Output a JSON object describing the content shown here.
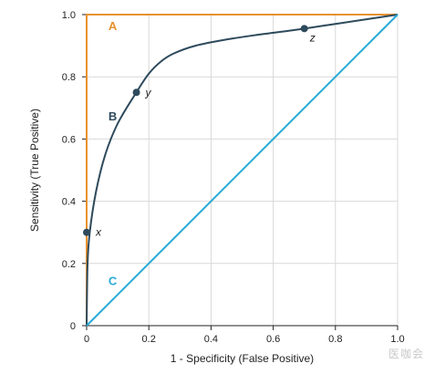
{
  "chart_data": {
    "type": "line",
    "xlabel": "1 - Specificity (False Positive)",
    "ylabel": "Sensitivity (True Positive)",
    "xlim": [
      0,
      1
    ],
    "ylim": [
      0,
      1
    ],
    "x_ticks": [
      0,
      0.2,
      0.4,
      0.6,
      0.8,
      1.0
    ],
    "x_tick_labels": [
      "0",
      "0.2",
      "0.4",
      "0.6",
      "0.8",
      "1.0"
    ],
    "y_ticks": [
      0,
      0.2,
      0.4,
      0.6,
      0.8,
      1.0
    ],
    "y_tick_labels": [
      "0",
      "0.2",
      "0.4",
      "0.6",
      "0.8",
      "1.0"
    ],
    "grid": true,
    "series": [
      {
        "name": "A",
        "color": "#e8922e",
        "x": [
          0,
          0,
          1
        ],
        "y": [
          0,
          1,
          1
        ]
      },
      {
        "name": "B",
        "color": "#2e4a5c",
        "x": [
          0,
          0.003,
          0.01,
          0.03,
          0.06,
          0.1,
          0.16,
          0.2,
          0.24,
          0.28,
          0.35,
          0.45,
          0.55,
          0.65,
          0.7,
          0.8,
          0.9,
          1.0
        ],
        "y": [
          0,
          0.2,
          0.3,
          0.43,
          0.55,
          0.65,
          0.75,
          0.81,
          0.85,
          0.875,
          0.9,
          0.92,
          0.935,
          0.948,
          0.955,
          0.97,
          0.985,
          1.0
        ]
      },
      {
        "name": "C",
        "color": "#27a9d6",
        "x": [
          0,
          1
        ],
        "y": [
          0,
          1
        ]
      }
    ],
    "curve_labels": [
      {
        "text": "A",
        "x": 0.07,
        "y": 0.95,
        "color": "#e8922e"
      },
      {
        "text": "B",
        "x": 0.07,
        "y": 0.66,
        "color": "#2e4a5c"
      },
      {
        "text": "C",
        "x": 0.07,
        "y": 0.13,
        "color": "#27a9d6"
      }
    ],
    "points": [
      {
        "label": "x",
        "x": 0.0,
        "y": 0.3
      },
      {
        "label": "y",
        "x": 0.16,
        "y": 0.75
      },
      {
        "label": "z",
        "x": 0.7,
        "y": 0.955
      }
    ],
    "point_color": "#2e4a5c"
  },
  "watermark": "医咖会"
}
